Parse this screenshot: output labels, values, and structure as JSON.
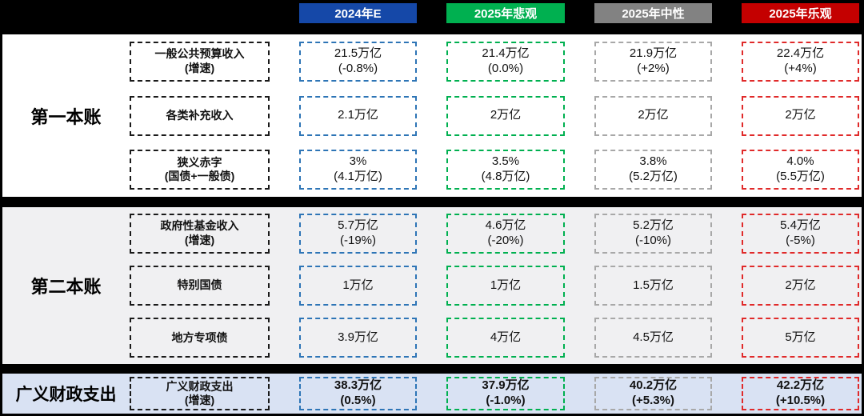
{
  "header": {
    "columns": [
      {
        "label": "2024年E",
        "color": "#1548a8",
        "box_border": "#2e75b6"
      },
      {
        "label": "2025年悲观",
        "color": "#00b050",
        "box_border": "#00b050"
      },
      {
        "label": "2025年中性",
        "color": "#828282",
        "box_border": "#a8a8a8"
      },
      {
        "label": "2025年乐观",
        "color": "#c40000",
        "box_border": "#e02a2a"
      }
    ]
  },
  "sections": [
    {
      "group_label": "第一本账",
      "bg": "#ffffff",
      "rows": [
        {
          "label": "一般公共预算收入\n(增速)",
          "values": [
            "21.5万亿\n(-0.8%)",
            "21.4万亿\n(0.0%)",
            "21.9万亿\n(+2%)",
            "22.4万亿\n(+4%)"
          ]
        },
        {
          "label": "各类补充收入",
          "values": [
            "2.1万亿",
            "2万亿",
            "2万亿",
            "2万亿"
          ]
        },
        {
          "label": "狭义赤字\n(国债+一般债)",
          "values": [
            "3%\n(4.1万亿)",
            "3.5%\n(4.8万亿)",
            "3.8%\n(5.2万亿)",
            "4.0%\n(5.5万亿)"
          ]
        }
      ]
    },
    {
      "group_label": "第二本账",
      "bg": "#f0f0f2",
      "rows": [
        {
          "label": "政府性基金收入\n(增速)",
          "values": [
            "5.7万亿\n(-19%)",
            "4.6万亿\n(-20%)",
            "5.2万亿\n(-10%)",
            "5.4万亿\n(-5%)"
          ]
        },
        {
          "label": "特别国债",
          "values": [
            "1万亿",
            "1万亿",
            "1.5万亿",
            "2万亿"
          ]
        },
        {
          "label": "地方专项债",
          "values": [
            "3.9万亿",
            "4万亿",
            "4.5万亿",
            "5万亿"
          ]
        }
      ]
    },
    {
      "group_label": "广义财政支出",
      "bg": "#d9e2f3",
      "rows": [
        {
          "label": "广义财政支出\n(增速)",
          "values": [
            "38.3万亿\n(0.5%)",
            "37.9万亿\n(-1.0%)",
            "40.2万亿\n(+5.3%)",
            "42.2万亿\n(+10.5%)"
          ]
        }
      ]
    }
  ],
  "chart_data": {
    "type": "table",
    "columns": [
      "2024年E",
      "2025年悲观",
      "2025年中性",
      "2025年乐观"
    ],
    "rows": [
      {
        "group": "第一本账",
        "indicator": "一般公共预算收入(增速)",
        "values": [
          "21.5万亿 (-0.8%)",
          "21.4万亿 (0.0%)",
          "21.9万亿 (+2%)",
          "22.4万亿 (+4%)"
        ]
      },
      {
        "group": "第一本账",
        "indicator": "各类补充收入",
        "values": [
          "2.1万亿",
          "2万亿",
          "2万亿",
          "2万亿"
        ]
      },
      {
        "group": "第一本账",
        "indicator": "狭义赤字(国债+一般债)",
        "values": [
          "3% (4.1万亿)",
          "3.5% (4.8万亿)",
          "3.8% (5.2万亿)",
          "4.0% (5.5万亿)"
        ]
      },
      {
        "group": "第二本账",
        "indicator": "政府性基金收入(增速)",
        "values": [
          "5.7万亿 (-19%)",
          "4.6万亿 (-20%)",
          "5.2万亿 (-10%)",
          "5.4万亿 (-5%)"
        ]
      },
      {
        "group": "第二本账",
        "indicator": "特别国债",
        "values": [
          "1万亿",
          "1万亿",
          "1.5万亿",
          "2万亿"
        ]
      },
      {
        "group": "第二本账",
        "indicator": "地方专项债",
        "values": [
          "3.9万亿",
          "4万亿",
          "4.5万亿",
          "5万亿"
        ]
      },
      {
        "group": "广义财政支出",
        "indicator": "广义财政支出(增速)",
        "values": [
          "38.3万亿 (0.5%)",
          "37.9万亿 (-1.0%)",
          "40.2万亿 (+5.3%)",
          "42.2万亿 (+10.5%)"
        ]
      }
    ],
    "layout": {
      "scenario_colors": [
        "#1548a8",
        "#00b050",
        "#828282",
        "#c40000"
      ],
      "grid": false,
      "legend_position": "top"
    }
  }
}
